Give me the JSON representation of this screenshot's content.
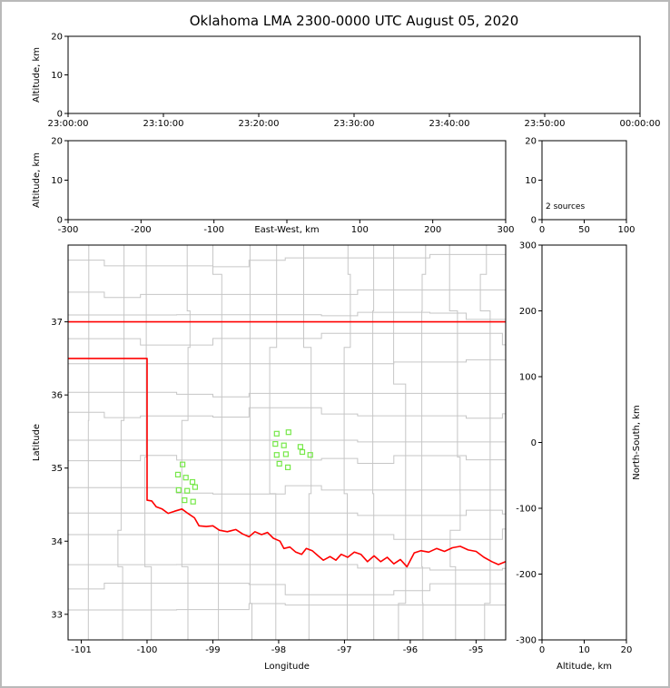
{
  "title": "Oklahoma LMA 2300-0000 UTC August 05, 2020",
  "colors": {
    "frame": "#b9b9b9",
    "axis": "#000000",
    "county_line": "#c6c6c6",
    "state_border": "#ff0000",
    "source_marker": "#77e84a",
    "background": "#ffffff"
  },
  "chart_data": [
    {
      "id": "time-height",
      "name": "Altitude vs Time panel",
      "type": "scatter",
      "ylabel": "Altitude, km",
      "xlim": [
        0,
        3600
      ],
      "ylim": [
        0,
        20
      ],
      "xticks": [
        {
          "v": 0,
          "label": "23:00:00"
        },
        {
          "v": 600,
          "label": "23:10:00"
        },
        {
          "v": 1200,
          "label": "23:20:00"
        },
        {
          "v": 1800,
          "label": "23:30:00"
        },
        {
          "v": 2400,
          "label": "23:40:00"
        },
        {
          "v": 3000,
          "label": "23:50:00"
        },
        {
          "v": 3600,
          "label": "00:00:00"
        }
      ],
      "yticks": [
        0,
        10,
        20
      ],
      "points": []
    },
    {
      "id": "ew-height",
      "name": "Altitude vs East-West panel",
      "type": "scatter",
      "xlabel": "East-West, km",
      "xlabel_inline": true,
      "ylabel": "Altitude, km",
      "xlim": [
        -300,
        300
      ],
      "ylim": [
        0,
        20
      ],
      "xticks": [
        {
          "v": -300,
          "label": "-300"
        },
        {
          "v": -200,
          "label": "-200"
        },
        {
          "v": -100,
          "label": "-100"
        },
        {
          "v": 0,
          "label": ""
        },
        {
          "v": 100,
          "label": "100"
        },
        {
          "v": 200,
          "label": "200"
        },
        {
          "v": 300,
          "label": "300"
        }
      ],
      "yticks": [
        0,
        10,
        20
      ],
      "points": []
    },
    {
      "id": "alt-histogram",
      "name": "Altitude histogram panel",
      "type": "histogram",
      "xlim": [
        0,
        100
      ],
      "ylim": [
        0,
        20
      ],
      "xticks": [
        {
          "v": 0,
          "label": "0"
        },
        {
          "v": 50,
          "label": "50"
        },
        {
          "v": 100,
          "label": "100"
        }
      ],
      "yticks": [
        0,
        10,
        20
      ],
      "annotation": "2 sources",
      "bars": []
    },
    {
      "id": "plan-map",
      "name": "Plan view map panel",
      "type": "map",
      "xlabel": "Longitude",
      "ylabel": "Latitude",
      "xlim": [
        -101.2,
        -94.55
      ],
      "ylim": [
        32.65,
        38.05
      ],
      "xticks": [
        {
          "v": -101,
          "label": "-101"
        },
        {
          "v": -100,
          "label": "-100"
        },
        {
          "v": -99,
          "label": "-99"
        },
        {
          "v": -98,
          "label": "-98"
        },
        {
          "v": -97,
          "label": "-97"
        },
        {
          "v": -96,
          "label": "-96"
        },
        {
          "v": -95,
          "label": "-95"
        }
      ],
      "yticks": [
        33,
        34,
        35,
        36,
        37
      ],
      "county_grid": {
        "seed": 11,
        "v_spacing": 0.48,
        "h_spacing": 0.36
      },
      "state_border": [
        [
          [
            -101.2,
            37.0
          ],
          [
            -94.55,
            37.0
          ]
        ],
        [
          [
            -101.2,
            36.5
          ],
          [
            -100.0,
            36.5
          ],
          [
            -100.0,
            34.56
          ],
          [
            -99.93,
            34.55
          ],
          [
            -99.86,
            34.47
          ],
          [
            -99.77,
            34.44
          ],
          [
            -99.68,
            34.38
          ],
          [
            -99.58,
            34.41
          ],
          [
            -99.47,
            34.44
          ],
          [
            -99.38,
            34.38
          ],
          [
            -99.28,
            34.32
          ],
          [
            -99.21,
            34.21
          ],
          [
            -99.1,
            34.2
          ],
          [
            -99.0,
            34.21
          ],
          [
            -98.9,
            34.15
          ],
          [
            -98.78,
            34.13
          ],
          [
            -98.65,
            34.16
          ],
          [
            -98.55,
            34.1
          ],
          [
            -98.45,
            34.06
          ],
          [
            -98.36,
            34.13
          ],
          [
            -98.26,
            34.09
          ],
          [
            -98.17,
            34.12
          ],
          [
            -98.08,
            34.04
          ],
          [
            -97.98,
            34.0
          ],
          [
            -97.92,
            33.9
          ],
          [
            -97.83,
            33.92
          ],
          [
            -97.74,
            33.85
          ],
          [
            -97.65,
            33.82
          ],
          [
            -97.58,
            33.9
          ],
          [
            -97.49,
            33.87
          ],
          [
            -97.4,
            33.8
          ],
          [
            -97.32,
            33.74
          ],
          [
            -97.22,
            33.79
          ],
          [
            -97.13,
            33.74
          ],
          [
            -97.05,
            33.82
          ],
          [
            -96.95,
            33.78
          ],
          [
            -96.85,
            33.85
          ],
          [
            -96.75,
            33.82
          ],
          [
            -96.65,
            33.72
          ],
          [
            -96.55,
            33.8
          ],
          [
            -96.45,
            33.72
          ],
          [
            -96.35,
            33.78
          ],
          [
            -96.25,
            33.69
          ],
          [
            -96.15,
            33.75
          ],
          [
            -96.05,
            33.65
          ],
          [
            -95.94,
            33.84
          ],
          [
            -95.84,
            33.87
          ],
          [
            -95.72,
            33.85
          ],
          [
            -95.6,
            33.9
          ],
          [
            -95.48,
            33.86
          ],
          [
            -95.36,
            33.91
          ],
          [
            -95.24,
            33.93
          ],
          [
            -95.12,
            33.88
          ],
          [
            -95.0,
            33.86
          ],
          [
            -94.88,
            33.78
          ],
          [
            -94.76,
            33.72
          ],
          [
            -94.66,
            33.68
          ],
          [
            -94.55,
            33.72
          ]
        ]
      ],
      "sources": [
        [
          -99.46,
          35.05
        ],
        [
          -99.53,
          34.91
        ],
        [
          -99.41,
          34.87
        ],
        [
          -99.31,
          34.81
        ],
        [
          -99.52,
          34.7
        ],
        [
          -99.39,
          34.69
        ],
        [
          -99.27,
          34.74
        ],
        [
          -99.43,
          34.56
        ],
        [
          -99.3,
          34.54
        ],
        [
          -98.03,
          35.47
        ],
        [
          -97.85,
          35.49
        ],
        [
          -98.05,
          35.33
        ],
        [
          -97.92,
          35.31
        ],
        [
          -97.67,
          35.29
        ],
        [
          -98.03,
          35.18
        ],
        [
          -97.89,
          35.19
        ],
        [
          -97.64,
          35.22
        ],
        [
          -97.52,
          35.18
        ],
        [
          -97.99,
          35.06
        ],
        [
          -97.86,
          35.01
        ]
      ]
    },
    {
      "id": "ns-height",
      "name": "North-South vs Altitude panel",
      "type": "scatter",
      "xlabel": "Altitude, km",
      "ylabel_right": "North-South, km",
      "xlim": [
        0,
        20
      ],
      "ylim": [
        -300,
        300
      ],
      "xticks": [
        {
          "v": 0,
          "label": "0"
        },
        {
          "v": 10,
          "label": "10"
        },
        {
          "v": 20,
          "label": "20"
        }
      ],
      "yticks": [
        -300,
        -200,
        -100,
        0,
        100,
        200,
        300
      ],
      "points": []
    }
  ]
}
